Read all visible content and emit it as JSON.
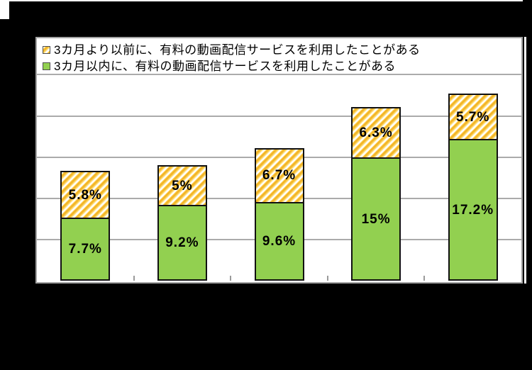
{
  "colors": {
    "background": "#000000",
    "plot_background": "#FFFFFF",
    "series_green": "#92D050",
    "hatch_gold": "#F0AD1E",
    "hatch_light_yellow": "#FFD75E",
    "gridline_gray": "#ABABAB",
    "bar_border": "#111111"
  },
  "legend": {
    "items": [
      {
        "swatch": "yellow-hatch",
        "label": "3カ月より以前に、有料の動画配信サービスを利用したことがある"
      },
      {
        "swatch": "green",
        "label": "3カ月以内に、有料の動画配信サービスを利用したことがある"
      }
    ]
  },
  "chart_data": {
    "type": "bar",
    "stacked": true,
    "categories": [
      "",
      "",
      "",
      "",
      ""
    ],
    "series": [
      {
        "name": "3カ月以内に、有料の動画配信サービスを利用したことがある",
        "style": "solid-green",
        "values": [
          7.7,
          9.2,
          9.6,
          15,
          17.2
        ],
        "labels": [
          "7.7%",
          "9.2%",
          "9.6%",
          "15%",
          "17.2%"
        ]
      },
      {
        "name": "3カ月より以前に、有料の動画配信サービスを利用したことがある",
        "style": "yellow-hatch",
        "values": [
          5.8,
          5,
          6.7,
          6.3,
          5.7
        ],
        "labels": [
          "5.8%",
          "5%",
          "6.7%",
          "6.3%",
          "5.7%"
        ]
      }
    ],
    "title": "",
    "xlabel": "",
    "ylabel": "",
    "ylim": [
      0,
      25
    ],
    "gridline_step": 5,
    "grid": true,
    "legend_position": "top",
    "axis_tick_labels_visible": false,
    "data_labels": "centered-in-segment"
  }
}
